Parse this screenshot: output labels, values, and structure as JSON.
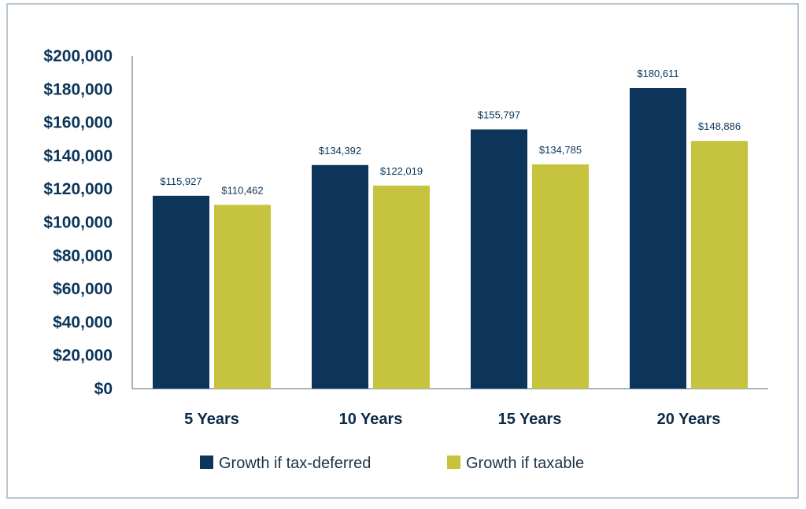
{
  "chart_data": {
    "type": "bar",
    "categories": [
      "5 Years",
      "10 Years",
      "15 Years",
      "20 Years"
    ],
    "series": [
      {
        "name": "Growth if tax-deferred",
        "color": "#0c3559",
        "values": [
          115927,
          134392,
          155797,
          180611
        ],
        "labels": [
          "$115,927",
          "$134,392",
          "$155,797",
          "$180,611"
        ]
      },
      {
        "name": "Growth if taxable",
        "color": "#c6c43f",
        "values": [
          110462,
          122019,
          134785,
          148886
        ],
        "labels": [
          "$110,462",
          "$122,019",
          "$134,785",
          "$148,886"
        ]
      }
    ],
    "ylim": [
      0,
      200000
    ],
    "yticks": [
      0,
      20000,
      40000,
      60000,
      80000,
      100000,
      120000,
      140000,
      160000,
      180000,
      200000
    ],
    "ytick_labels": [
      "$0",
      "$20,000",
      "$40,000",
      "$60,000",
      "$80,000",
      "$100,000",
      "$120,000",
      "$140,000",
      "$160,000",
      "$180,000",
      "$200,000"
    ],
    "grid": false,
    "legend_position": "bottom-center",
    "title": "",
    "xlabel": "",
    "ylabel": ""
  }
}
